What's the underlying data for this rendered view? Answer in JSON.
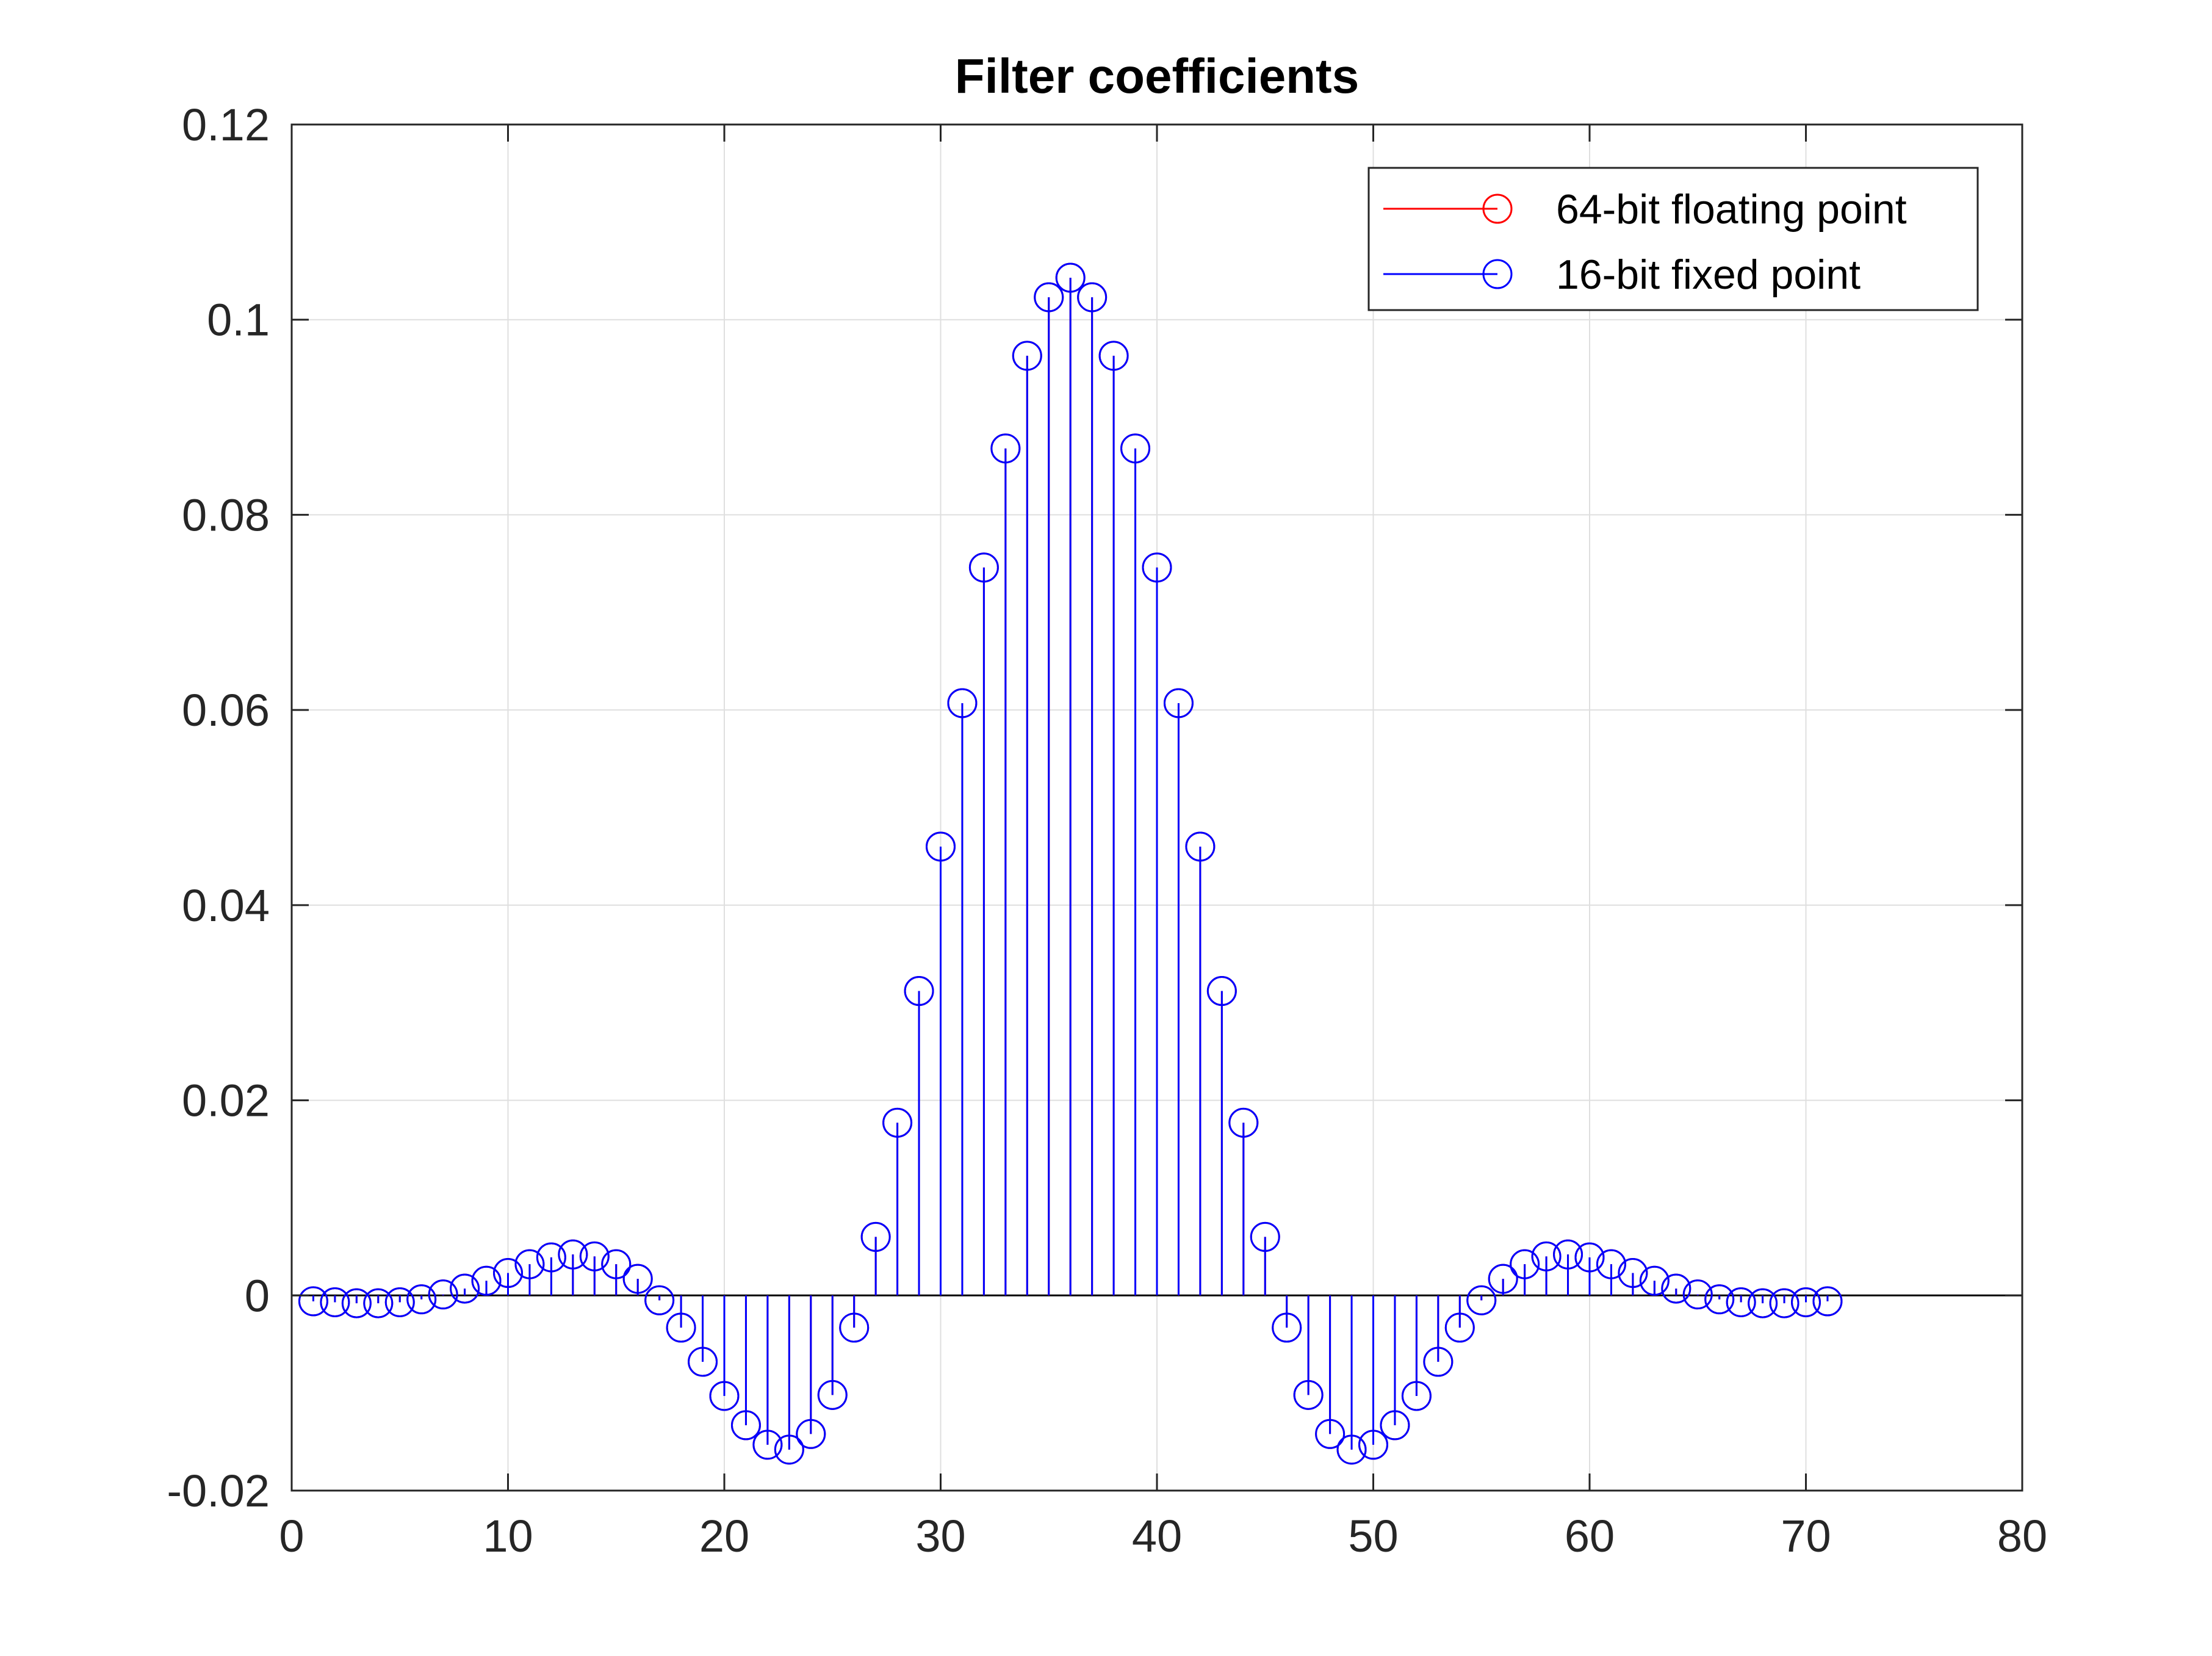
{
  "chart_data": {
    "type": "stem",
    "title": "Filter coefficients",
    "xlabel": "",
    "ylabel": "",
    "xlim": [
      0,
      80
    ],
    "ylim": [
      -0.02,
      0.12
    ],
    "xticks": [
      0,
      10,
      20,
      30,
      40,
      50,
      60,
      70,
      80
    ],
    "yticks": [
      -0.02,
      0,
      0.02,
      0.04,
      0.06,
      0.08,
      0.1,
      0.12
    ],
    "xtick_labels": [
      "0",
      "10",
      "20",
      "30",
      "40",
      "50",
      "60",
      "70",
      "80"
    ],
    "ytick_labels": [
      "-0.02",
      "0",
      "0.02",
      "0.04",
      "0.06",
      "0.08",
      "0.1",
      "0.12"
    ],
    "grid": true,
    "legend_position": "top-right",
    "x": [
      1,
      2,
      3,
      4,
      5,
      6,
      7,
      8,
      9,
      10,
      11,
      12,
      13,
      14,
      15,
      16,
      17,
      18,
      19,
      20,
      21,
      22,
      23,
      24,
      25,
      26,
      27,
      28,
      29,
      30,
      31,
      32,
      33,
      34,
      35,
      36,
      37,
      38,
      39,
      40,
      41,
      42,
      43,
      44,
      45,
      46,
      47,
      48,
      49,
      50,
      51,
      52,
      53,
      54,
      55,
      56,
      57,
      58,
      59,
      60,
      61,
      62,
      63,
      64,
      65,
      66,
      67,
      68,
      69,
      70,
      71
    ],
    "series": [
      {
        "name": "64-bit floating point",
        "color": "#ff0000",
        "values": [
          -0.0006,
          -0.0007,
          -0.0008,
          -0.0008,
          -0.0007,
          -0.0004,
          0.0001,
          0.0007,
          0.0015,
          0.0023,
          0.0032,
          0.0039,
          0.0042,
          0.004,
          0.0032,
          0.0017,
          -0.0005,
          -0.0033,
          -0.0068,
          -0.0103,
          -0.0133,
          -0.0153,
          -0.0158,
          -0.0142,
          -0.0102,
          -0.0033,
          0.006,
          0.0177,
          0.0312,
          0.046,
          0.0607,
          0.0746,
          0.0868,
          0.0963,
          0.1023,
          0.1043,
          0.1023,
          0.0963,
          0.0868,
          0.0746,
          0.0607,
          0.046,
          0.0312,
          0.0177,
          0.006,
          -0.0033,
          -0.0102,
          -0.0142,
          -0.0158,
          -0.0153,
          -0.0133,
          -0.0103,
          -0.0068,
          -0.0033,
          -0.0005,
          0.0017,
          0.0032,
          0.004,
          0.0042,
          0.0039,
          0.0032,
          0.0023,
          0.0015,
          0.0007,
          0.0001,
          -0.0004,
          -0.0007,
          -0.0008,
          -0.0008,
          -0.0007,
          -0.0006
        ]
      },
      {
        "name": "16-bit fixed point",
        "color": "#0000ff",
        "values": [
          -0.0006,
          -0.0007,
          -0.0008,
          -0.0008,
          -0.0007,
          -0.0004,
          0.0001,
          0.0007,
          0.0015,
          0.0023,
          0.0032,
          0.0039,
          0.0042,
          0.004,
          0.0032,
          0.0017,
          -0.0005,
          -0.0033,
          -0.0068,
          -0.0103,
          -0.0133,
          -0.0153,
          -0.0158,
          -0.0142,
          -0.0102,
          -0.0033,
          0.006,
          0.0177,
          0.0312,
          0.046,
          0.0607,
          0.0746,
          0.0868,
          0.0963,
          0.1023,
          0.1043,
          0.1023,
          0.0963,
          0.0868,
          0.0746,
          0.0607,
          0.046,
          0.0312,
          0.0177,
          0.006,
          -0.0033,
          -0.0102,
          -0.0142,
          -0.0158,
          -0.0153,
          -0.0133,
          -0.0103,
          -0.0068,
          -0.0033,
          -0.0005,
          0.0017,
          0.0032,
          0.004,
          0.0042,
          0.0039,
          0.0032,
          0.0023,
          0.0015,
          0.0007,
          0.0001,
          -0.0004,
          -0.0007,
          -0.0008,
          -0.0008,
          -0.0007,
          -0.0006
        ]
      }
    ]
  }
}
